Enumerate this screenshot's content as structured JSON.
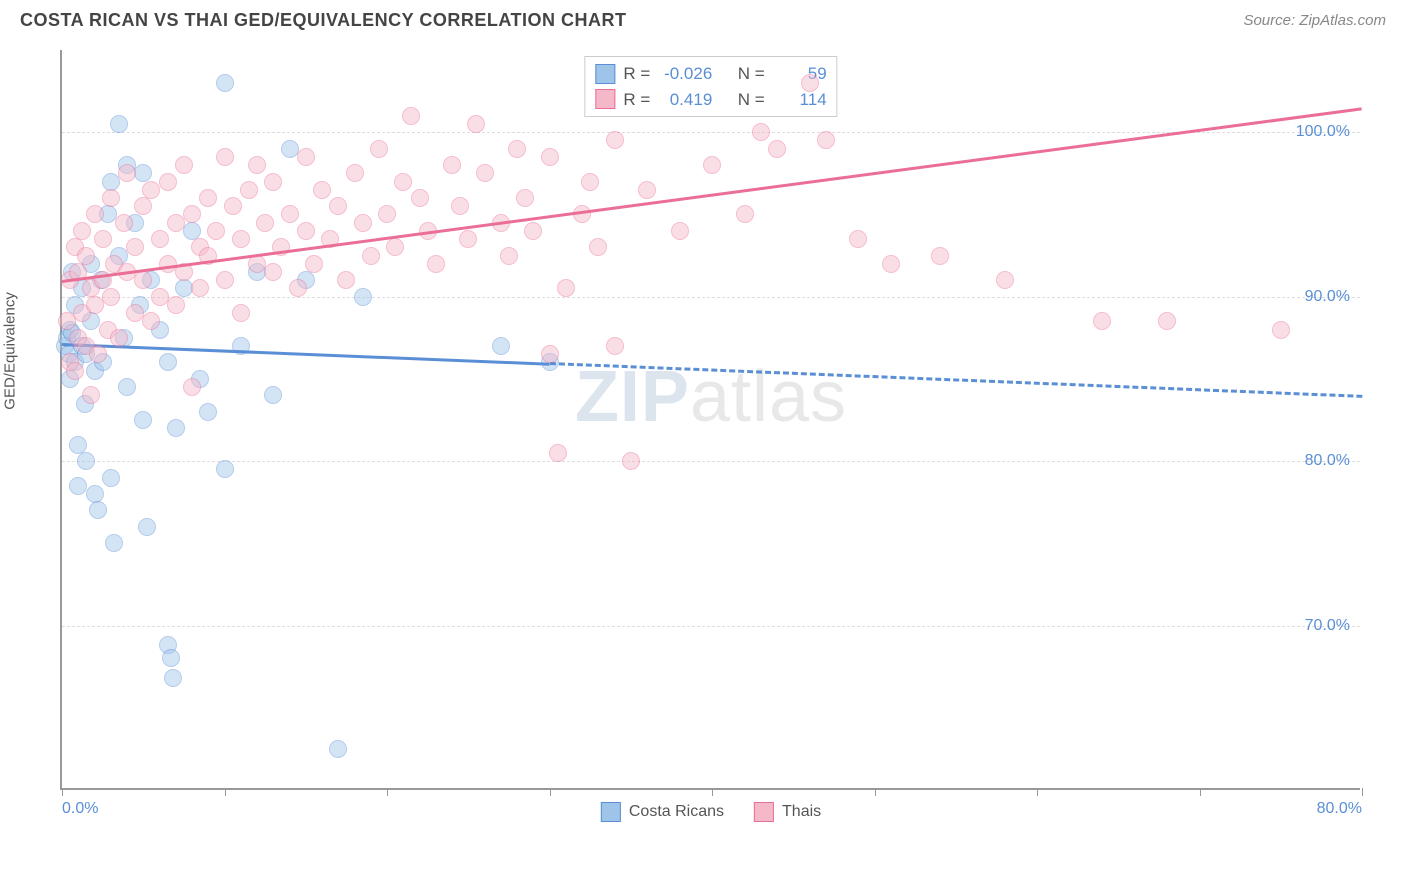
{
  "header": {
    "title": "COSTA RICAN VS THAI GED/EQUIVALENCY CORRELATION CHART",
    "source": "Source: ZipAtlas.com"
  },
  "chart": {
    "type": "scatter",
    "ylabel": "GED/Equivalency",
    "watermark_bold": "ZIP",
    "watermark_rest": "atlas",
    "xlim": [
      0,
      80
    ],
    "ylim": [
      60,
      105
    ],
    "x_ticks": [
      0,
      10,
      20,
      30,
      40,
      50,
      60,
      70,
      80
    ],
    "x_tick_labels_shown": {
      "0": "0.0%",
      "80": "80.0%"
    },
    "y_gridlines": [
      70,
      80,
      90,
      100
    ],
    "y_tick_labels": {
      "70": "70.0%",
      "80": "80.0%",
      "90": "90.0%",
      "100": "100.0%"
    },
    "background_color": "#ffffff",
    "grid_color": "#dddddd",
    "axis_color": "#999999",
    "tick_label_color": "#5a8fd6",
    "point_radius": 9,
    "point_opacity": 0.45,
    "series": [
      {
        "name_key": "costa_ricans",
        "label": "Costa Ricans",
        "color_fill": "#9ec4ea",
        "color_stroke": "#5a8fd6",
        "R": "-0.026",
        "N": "59",
        "trend": {
          "y_at_x0": 87.2,
          "y_at_xmax": 84.0,
          "solid_until_x": 30,
          "width": 3
        },
        "points": [
          [
            0.2,
            87.0
          ],
          [
            0.3,
            87.5
          ],
          [
            0.4,
            86.5
          ],
          [
            0.5,
            88.0
          ],
          [
            0.5,
            85.0
          ],
          [
            0.6,
            91.5
          ],
          [
            0.6,
            87.8
          ],
          [
            0.8,
            89.5
          ],
          [
            0.8,
            86.0
          ],
          [
            1.0,
            81.0
          ],
          [
            1.0,
            78.5
          ],
          [
            1.2,
            90.5
          ],
          [
            1.2,
            87.0
          ],
          [
            1.4,
            83.5
          ],
          [
            1.5,
            86.5
          ],
          [
            1.5,
            80.0
          ],
          [
            1.8,
            92.0
          ],
          [
            1.8,
            88.5
          ],
          [
            2.0,
            85.5
          ],
          [
            2.0,
            78.0
          ],
          [
            2.2,
            77.0
          ],
          [
            2.4,
            91.0
          ],
          [
            2.5,
            86.0
          ],
          [
            2.8,
            95.0
          ],
          [
            3.0,
            97.0
          ],
          [
            3.0,
            79.0
          ],
          [
            3.2,
            75.0
          ],
          [
            3.5,
            100.5
          ],
          [
            3.5,
            92.5
          ],
          [
            3.8,
            87.5
          ],
          [
            4.0,
            98.0
          ],
          [
            4.0,
            84.5
          ],
          [
            4.5,
            94.5
          ],
          [
            4.8,
            89.5
          ],
          [
            5.0,
            97.5
          ],
          [
            5.0,
            82.5
          ],
          [
            5.2,
            76.0
          ],
          [
            5.5,
            91.0
          ],
          [
            6.0,
            88.0
          ],
          [
            6.5,
            86.0
          ],
          [
            6.5,
            68.8
          ],
          [
            6.7,
            68.0
          ],
          [
            6.8,
            66.8
          ],
          [
            7.0,
            82.0
          ],
          [
            7.5,
            90.5
          ],
          [
            8.0,
            94.0
          ],
          [
            8.5,
            85.0
          ],
          [
            9.0,
            83.0
          ],
          [
            10.0,
            79.5
          ],
          [
            10.0,
            103.0
          ],
          [
            11.0,
            87.0
          ],
          [
            12.0,
            91.5
          ],
          [
            13.0,
            84.0
          ],
          [
            14.0,
            99.0
          ],
          [
            15.0,
            91.0
          ],
          [
            17.0,
            62.5
          ],
          [
            18.5,
            90.0
          ],
          [
            27.0,
            87.0
          ],
          [
            30.0,
            86.0
          ]
        ]
      },
      {
        "name_key": "thais",
        "label": "Thais",
        "color_fill": "#f5b8c9",
        "color_stroke": "#ea6e95",
        "R": "0.419",
        "N": "114",
        "trend": {
          "y_at_x0": 91.0,
          "y_at_xmax": 101.5,
          "solid_until_x": 80,
          "width": 3
        },
        "points": [
          [
            0.3,
            88.5
          ],
          [
            0.5,
            91.0
          ],
          [
            0.5,
            86.0
          ],
          [
            0.8,
            93.0
          ],
          [
            0.8,
            85.5
          ],
          [
            1.0,
            91.5
          ],
          [
            1.0,
            87.5
          ],
          [
            1.2,
            94.0
          ],
          [
            1.2,
            89.0
          ],
          [
            1.5,
            92.5
          ],
          [
            1.5,
            87.0
          ],
          [
            1.8,
            84.0
          ],
          [
            1.8,
            90.5
          ],
          [
            2.0,
            95.0
          ],
          [
            2.0,
            89.5
          ],
          [
            2.2,
            86.5
          ],
          [
            2.5,
            93.5
          ],
          [
            2.5,
            91.0
          ],
          [
            2.8,
            88.0
          ],
          [
            3.0,
            96.0
          ],
          [
            3.0,
            90.0
          ],
          [
            3.2,
            92.0
          ],
          [
            3.5,
            87.5
          ],
          [
            3.8,
            94.5
          ],
          [
            4.0,
            91.5
          ],
          [
            4.0,
            97.5
          ],
          [
            4.5,
            93.0
          ],
          [
            4.5,
            89.0
          ],
          [
            5.0,
            95.5
          ],
          [
            5.0,
            91.0
          ],
          [
            5.5,
            88.5
          ],
          [
            5.5,
            96.5
          ],
          [
            6.0,
            93.5
          ],
          [
            6.0,
            90.0
          ],
          [
            6.5,
            97.0
          ],
          [
            6.5,
            92.0
          ],
          [
            7.0,
            94.5
          ],
          [
            7.0,
            89.5
          ],
          [
            7.5,
            91.5
          ],
          [
            7.5,
            98.0
          ],
          [
            8.0,
            95.0
          ],
          [
            8.0,
            84.5
          ],
          [
            8.5,
            93.0
          ],
          [
            8.5,
            90.5
          ],
          [
            9.0,
            96.0
          ],
          [
            9.0,
            92.5
          ],
          [
            9.5,
            94.0
          ],
          [
            10.0,
            98.5
          ],
          [
            10.0,
            91.0
          ],
          [
            10.5,
            95.5
          ],
          [
            11.0,
            89.0
          ],
          [
            11.0,
            93.5
          ],
          [
            11.5,
            96.5
          ],
          [
            12.0,
            92.0
          ],
          [
            12.0,
            98.0
          ],
          [
            12.5,
            94.5
          ],
          [
            13.0,
            91.5
          ],
          [
            13.0,
            97.0
          ],
          [
            13.5,
            93.0
          ],
          [
            14.0,
            95.0
          ],
          [
            14.5,
            90.5
          ],
          [
            15.0,
            98.5
          ],
          [
            15.0,
            94.0
          ],
          [
            15.5,
            92.0
          ],
          [
            16.0,
            96.5
          ],
          [
            16.5,
            93.5
          ],
          [
            17.0,
            95.5
          ],
          [
            17.5,
            91.0
          ],
          [
            18.0,
            97.5
          ],
          [
            18.5,
            94.5
          ],
          [
            19.0,
            92.5
          ],
          [
            19.5,
            99.0
          ],
          [
            20.0,
            95.0
          ],
          [
            20.5,
            93.0
          ],
          [
            21.0,
            97.0
          ],
          [
            21.5,
            101.0
          ],
          [
            22.0,
            96.0
          ],
          [
            22.5,
            94.0
          ],
          [
            23.0,
            92.0
          ],
          [
            24.0,
            98.0
          ],
          [
            24.5,
            95.5
          ],
          [
            25.0,
            93.5
          ],
          [
            25.5,
            100.5
          ],
          [
            26.0,
            97.5
          ],
          [
            27.0,
            94.5
          ],
          [
            27.5,
            92.5
          ],
          [
            28.0,
            99.0
          ],
          [
            28.5,
            96.0
          ],
          [
            29.0,
            94.0
          ],
          [
            30.0,
            86.5
          ],
          [
            30.0,
            98.5
          ],
          [
            30.5,
            80.5
          ],
          [
            31.0,
            90.5
          ],
          [
            32.0,
            95.0
          ],
          [
            32.5,
            97.0
          ],
          [
            33.0,
            93.0
          ],
          [
            34.0,
            87.0
          ],
          [
            34.0,
            99.5
          ],
          [
            35.0,
            80.0
          ],
          [
            36.0,
            96.5
          ],
          [
            38.0,
            94.0
          ],
          [
            40.0,
            98.0
          ],
          [
            42.0,
            95.0
          ],
          [
            43.0,
            100.0
          ],
          [
            44.0,
            99.0
          ],
          [
            46.0,
            103.0
          ],
          [
            47.0,
            99.5
          ],
          [
            49.0,
            93.5
          ],
          [
            51.0,
            92.0
          ],
          [
            54.0,
            92.5
          ],
          [
            58.0,
            91.0
          ],
          [
            64.0,
            88.5
          ],
          [
            68.0,
            88.5
          ],
          [
            75.0,
            88.0
          ]
        ]
      }
    ],
    "stats_box": {
      "labels": {
        "R": "R =",
        "N": "N ="
      }
    },
    "legend_labels": [
      "Costa Ricans",
      "Thais"
    ]
  }
}
